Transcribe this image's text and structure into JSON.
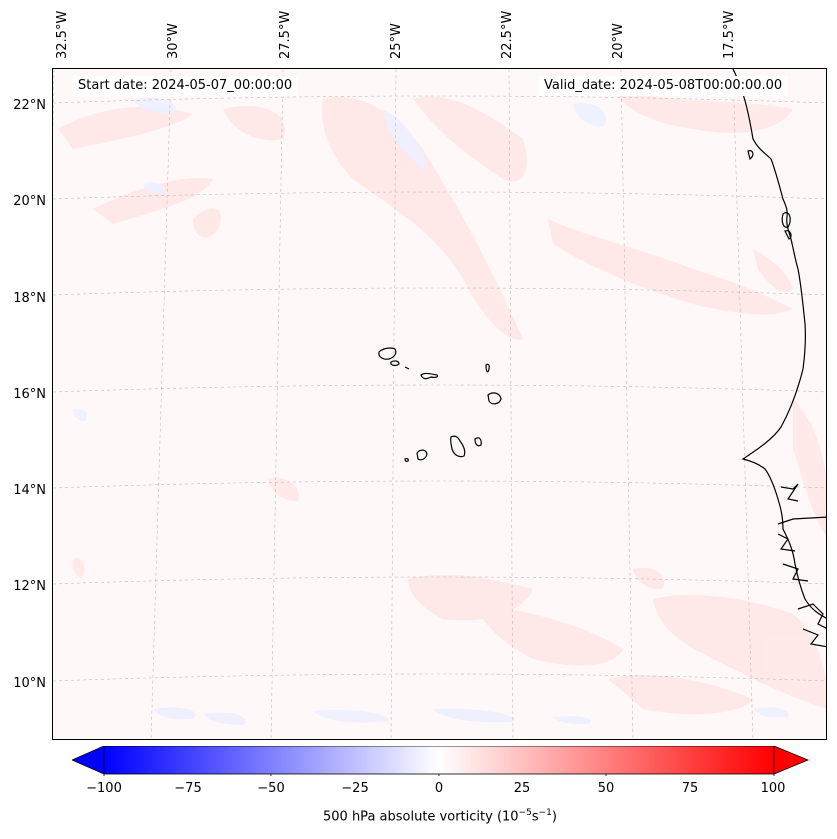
{
  "map": {
    "start_date": "Start date: 2024-05-07_00:00:00",
    "valid_date": "Valid_date: 2024-05-08T00:00:00.00",
    "lon_labels": [
      "32.5°W",
      "30°W",
      "27.5°W",
      "25°W",
      "22.5°W",
      "20°W",
      "17.5°W"
    ],
    "lat_labels": [
      "22°N",
      "20°N",
      "18°N",
      "16°N",
      "14°N",
      "12°N",
      "10°N"
    ],
    "field_colors": {
      "background": "#fff8f8",
      "positive": "#ffe9e9",
      "negative": "#f4f4ff"
    },
    "coastline_color": "#000000"
  },
  "colorbar": {
    "ticks": [
      "−100",
      "−75",
      "−50",
      "−25",
      "0",
      "25",
      "50",
      "75",
      "100"
    ],
    "min": -100,
    "max": 100,
    "colors": [
      "#0000ff",
      "#ffffff",
      "#ff0000"
    ],
    "label_main": "500 hPa absolute vorticity (10",
    "label_exp1": "−5",
    "label_mid": "s",
    "label_exp2": "−1",
    "label_end": ")"
  }
}
